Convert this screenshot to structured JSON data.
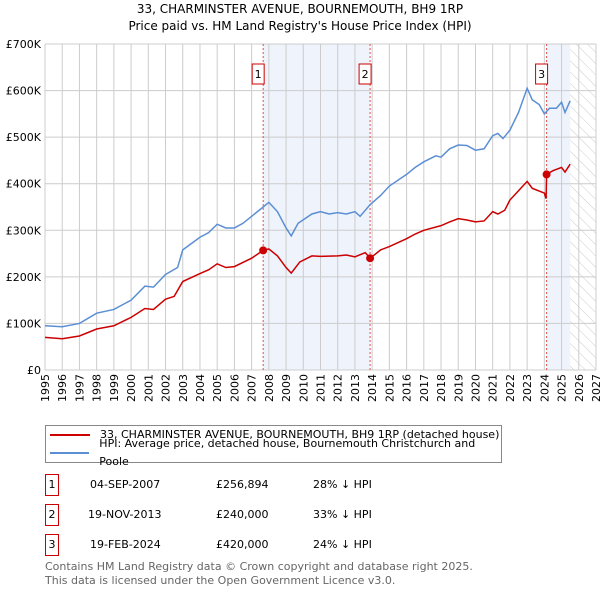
{
  "title": "33, CHARMINSTER AVENUE, BOURNEMOUTH, BH9 1RP",
  "subtitle": "Price paid vs. HM Land Registry's House Price Index (HPI)",
  "chart_data": {
    "type": "line",
    "xlim": [
      1995,
      2027
    ],
    "ylim": [
      0,
      700000
    ],
    "x_ticks": [
      1995,
      1996,
      1997,
      1998,
      1999,
      2000,
      2001,
      2002,
      2003,
      2004,
      2005,
      2006,
      2007,
      2008,
      2009,
      2010,
      2011,
      2012,
      2013,
      2014,
      2015,
      2016,
      2017,
      2018,
      2019,
      2020,
      2021,
      2022,
      2023,
      2024,
      2025,
      2026,
      2027
    ],
    "y_ticks": [
      {
        "v": 0,
        "label": "£0"
      },
      {
        "v": 100000,
        "label": "£100K"
      },
      {
        "v": 200000,
        "label": "£200K"
      },
      {
        "v": 300000,
        "label": "£300K"
      },
      {
        "v": 400000,
        "label": "£400K"
      },
      {
        "v": 500000,
        "label": "£500K"
      },
      {
        "v": 600000,
        "label": "£600K"
      },
      {
        "v": 700000,
        "label": "£700K"
      }
    ],
    "grid": true,
    "shaded_ranges": [
      [
        2007.67,
        2013.88
      ],
      [
        2024.13,
        2025.5
      ]
    ],
    "hatched_range": [
      2025.5,
      2027
    ],
    "series": [
      {
        "name": "33, CHARMINSTER AVENUE, BOURNEMOUTH, BH9 1RP (detached house)",
        "color": "#cc0000",
        "points": [
          [
            1995,
            70
          ],
          [
            1996,
            67
          ],
          [
            1997,
            73
          ],
          [
            1998,
            88
          ],
          [
            1999,
            95
          ],
          [
            2000,
            113
          ],
          [
            2000.8,
            132
          ],
          [
            2001.3,
            130
          ],
          [
            2002,
            152
          ],
          [
            2002.5,
            158
          ],
          [
            2003,
            190
          ],
          [
            2004,
            207
          ],
          [
            2004.5,
            215
          ],
          [
            2005,
            228
          ],
          [
            2005.5,
            220
          ],
          [
            2006,
            222
          ],
          [
            2007,
            240
          ],
          [
            2007.67,
            257
          ],
          [
            2008,
            260
          ],
          [
            2008.5,
            245
          ],
          [
            2009,
            220
          ],
          [
            2009.3,
            208
          ],
          [
            2009.8,
            232
          ],
          [
            2010.5,
            245
          ],
          [
            2011,
            244
          ],
          [
            2012,
            245
          ],
          [
            2012.5,
            247
          ],
          [
            2013,
            243
          ],
          [
            2013.6,
            252
          ],
          [
            2013.88,
            240
          ],
          [
            2014.5,
            258
          ],
          [
            2015,
            265
          ],
          [
            2016,
            282
          ],
          [
            2016.5,
            292
          ],
          [
            2017,
            300
          ],
          [
            2018,
            310
          ],
          [
            2018.5,
            318
          ],
          [
            2019,
            325
          ],
          [
            2019.5,
            322
          ],
          [
            2020,
            318
          ],
          [
            2020.5,
            320
          ],
          [
            2021,
            340
          ],
          [
            2021.3,
            335
          ],
          [
            2021.7,
            343
          ],
          [
            2022,
            365
          ],
          [
            2022.5,
            385
          ],
          [
            2023,
            405
          ],
          [
            2023.3,
            390
          ],
          [
            2024,
            380
          ],
          [
            2024.1,
            368
          ],
          [
            2024.13,
            420
          ],
          [
            2024.5,
            428
          ],
          [
            2025,
            435
          ],
          [
            2025.2,
            425
          ],
          [
            2025.5,
            442
          ]
        ]
      },
      {
        "name": "HPI: Average price, detached house, Bournemouth Christchurch and Poole",
        "color": "#5b8fd4",
        "points": [
          [
            1995,
            95
          ],
          [
            1996,
            93
          ],
          [
            1997,
            100
          ],
          [
            1998,
            122
          ],
          [
            1999,
            130
          ],
          [
            2000,
            150
          ],
          [
            2000.8,
            180
          ],
          [
            2001.3,
            178
          ],
          [
            2002,
            205
          ],
          [
            2002.7,
            220
          ],
          [
            2003,
            258
          ],
          [
            2004,
            285
          ],
          [
            2004.5,
            295
          ],
          [
            2005,
            313
          ],
          [
            2005.5,
            305
          ],
          [
            2006,
            305
          ],
          [
            2006.5,
            315
          ],
          [
            2007,
            330
          ],
          [
            2007.67,
            350
          ],
          [
            2008,
            360
          ],
          [
            2008.5,
            340
          ],
          [
            2009,
            305
          ],
          [
            2009.3,
            288
          ],
          [
            2009.7,
            315
          ],
          [
            2010.5,
            335
          ],
          [
            2011,
            340
          ],
          [
            2011.5,
            335
          ],
          [
            2012,
            338
          ],
          [
            2012.5,
            335
          ],
          [
            2013,
            340
          ],
          [
            2013.3,
            330
          ],
          [
            2013.88,
            355
          ],
          [
            2014.5,
            375
          ],
          [
            2015,
            395
          ],
          [
            2016,
            420
          ],
          [
            2016.5,
            435
          ],
          [
            2017,
            447
          ],
          [
            2017.7,
            460
          ],
          [
            2018,
            457
          ],
          [
            2018.5,
            475
          ],
          [
            2019,
            483
          ],
          [
            2019.5,
            482
          ],
          [
            2020,
            472
          ],
          [
            2020.5,
            475
          ],
          [
            2021,
            503
          ],
          [
            2021.3,
            508
          ],
          [
            2021.6,
            497
          ],
          [
            2022,
            515
          ],
          [
            2022.5,
            553
          ],
          [
            2023,
            605
          ],
          [
            2023.3,
            580
          ],
          [
            2023.7,
            570
          ],
          [
            2024,
            550
          ],
          [
            2024.3,
            562
          ],
          [
            2024.7,
            562
          ],
          [
            2025,
            575
          ],
          [
            2025.2,
            553
          ],
          [
            2025.5,
            578
          ]
        ]
      }
    ],
    "y_units": "thousands GBP",
    "sales": [
      {
        "label": "1",
        "x": 2007.67,
        "y": 256.894
      },
      {
        "label": "2",
        "x": 2013.88,
        "y": 240
      },
      {
        "label": "3",
        "x": 2024.13,
        "y": 420
      }
    ]
  },
  "legend": {
    "items": [
      "33, CHARMINSTER AVENUE, BOURNEMOUTH, BH9 1RP (detached house)",
      "HPI: Average price, detached house, Bournemouth Christchurch and Poole"
    ]
  },
  "table": [
    {
      "n": "1",
      "date": "04-SEP-2007",
      "price": "£256,894",
      "hpi": "28% ↓ HPI"
    },
    {
      "n": "2",
      "date": "19-NOV-2013",
      "price": "£240,000",
      "hpi": "33% ↓ HPI"
    },
    {
      "n": "3",
      "date": "19-FEB-2024",
      "price": "£420,000",
      "hpi": "24% ↓ HPI"
    }
  ],
  "footer": [
    "Contains HM Land Registry data © Crown copyright and database right 2025.",
    "This data is licensed under the Open Government Licence v3.0."
  ]
}
